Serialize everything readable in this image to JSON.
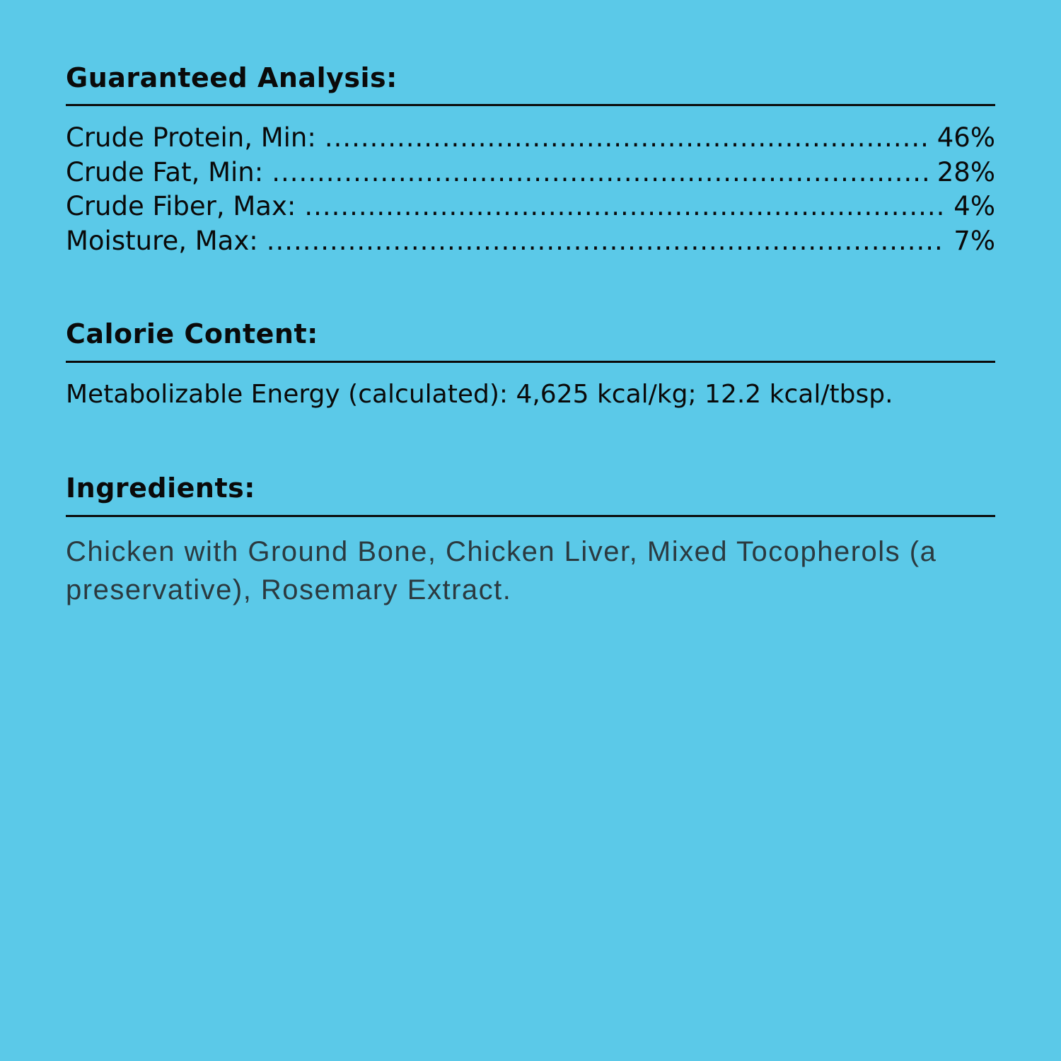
{
  "background_color": "#5bc9e8",
  "guaranteed_analysis": {
    "title": "Guaranteed Analysis:",
    "rows": [
      {
        "label": "Crude Protein, Min:",
        "value": "46%"
      },
      {
        "label": "Crude Fat, Min:",
        "value": "28%"
      },
      {
        "label": "Crude Fiber, Max:",
        "value": "4%"
      },
      {
        "label": "Moisture, Max:",
        "value": "7%"
      }
    ]
  },
  "calorie_content": {
    "title": "Calorie Content:",
    "text": "Metabolizable Energy (calculated): 4,625 kcal/kg; 12.2 kcal/tbsp."
  },
  "ingredients": {
    "title": "Ingredients:",
    "text": "Chicken with Ground Bone, Chicken Liver, Mixed Tocopherols (a preservative), Rosemary Extract."
  }
}
